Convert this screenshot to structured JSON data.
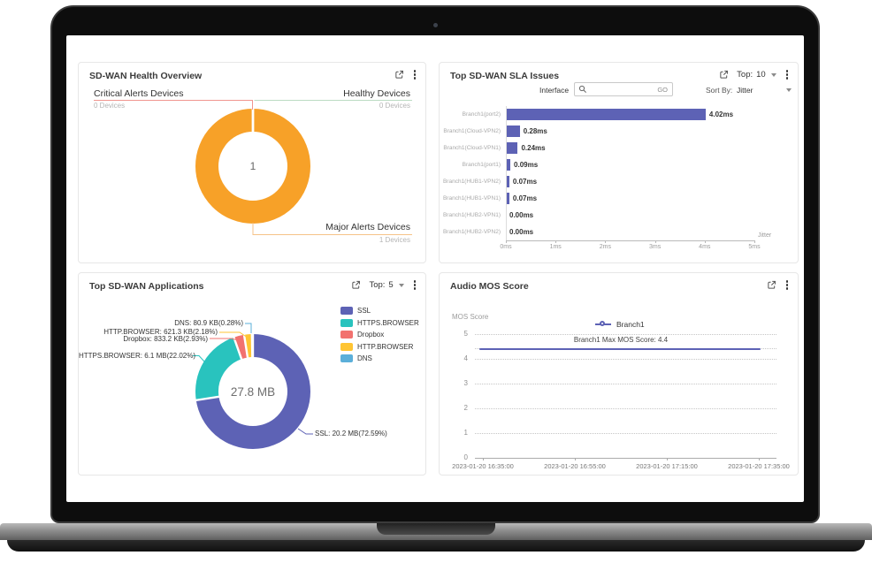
{
  "panels": {
    "health": {
      "title": "SD-WAN Health Overview",
      "chart_data": {
        "type": "pie",
        "style": "donut",
        "center_label": "1",
        "slices": [
          {
            "label": "Critical Alerts Devices",
            "sublabel": "0 Devices",
            "value": 0,
            "color": "#F2726F",
            "line_color": "#F0958F"
          },
          {
            "label": "Healthy Devices",
            "sublabel": "0 Devices",
            "value": 0,
            "color": "#7BC67E",
            "line_color": "#BCDCC3"
          },
          {
            "label": "Major Alerts Devices",
            "sublabel": "1 Devices",
            "value": 1,
            "color": "#F7A128",
            "line_color": "#F6C388"
          }
        ]
      }
    },
    "sla": {
      "title": "Top SD-WAN SLA Issues",
      "top_control": {
        "label": "Top:",
        "value": "10"
      },
      "filter": {
        "interface_label": "Interface",
        "search_value": "",
        "go_label": "GO",
        "sort_by_label": "Sort By:",
        "sort_by_value": "Jitter"
      },
      "chart_data": {
        "type": "bar",
        "orientation": "horizontal",
        "categories": [
          "Branch1(port2)",
          "Branch1(Cloud-VPN2)",
          "Branch1(Cloud-VPN1)",
          "Branch1(port1)",
          "Branch1(HUB1-VPN2)",
          "Branch1(HUB1-VPN1)",
          "Branch1(HUB2-VPN1)",
          "Branch1(HUB2-VPN2)"
        ],
        "values": [
          4.02,
          0.28,
          0.24,
          0.09,
          0.07,
          0.07,
          0.0,
          0.0
        ],
        "value_labels": [
          "4.02ms",
          "0.28ms",
          "0.24ms",
          "0.09ms",
          "0.07ms",
          "0.07ms",
          "0.00ms",
          "0.00ms"
        ],
        "x_ticks": [
          "0ms",
          "1ms",
          "2ms",
          "3ms",
          "4ms",
          "5ms"
        ],
        "xlim": [
          0,
          5
        ],
        "xlabel": "Jitter",
        "bar_color": "#5D62B5",
        "grid": "off"
      }
    },
    "applications": {
      "title": "Top SD-WAN Applications",
      "top_control": {
        "label": "Top:",
        "value": "5"
      },
      "chart_data": {
        "type": "pie",
        "style": "donut",
        "center_label": "27.8 MB",
        "legend_position": "right",
        "slices": [
          {
            "name": "SSL",
            "callout": "SSL: 20.2 MB(72.59%)",
            "value": 72.59,
            "color": "#5D62B5"
          },
          {
            "name": "HTTPS.BROWSER",
            "callout": "HTTPS.BROWSER: 6.1 MB(22.02%)",
            "value": 22.02,
            "color": "#29C3BE"
          },
          {
            "name": "Dropbox",
            "callout": "Dropbox: 833.2 KB(2.93%)",
            "value": 2.93,
            "color": "#F2726F"
          },
          {
            "name": "HTTP.BROWSER",
            "callout": "HTTP.BROWSER: 621.3 KB(2.18%)",
            "value": 2.18,
            "color": "#FFC533"
          },
          {
            "name": "DNS",
            "callout": "DNS: 80.9 KB(0.28%)",
            "value": 0.28,
            "color": "#5BAFD9"
          }
        ]
      }
    },
    "mos": {
      "title": "Audio MOS Score",
      "chart_data": {
        "type": "line",
        "ylabel": "MOS Score",
        "ylim": [
          0,
          5
        ],
        "y_ticks": [
          5,
          4,
          3,
          2,
          1,
          0
        ],
        "x_ticks": [
          "2023-01-20 16:35:00",
          "2023-01-20 16:55:00",
          "2023-01-20 17:15:00",
          "2023-01-20 17:35:00"
        ],
        "series": [
          {
            "name": "Branch1",
            "color": "#5D62B5",
            "constant_value": 4.4
          }
        ],
        "annotation": "Branch1 Max MOS Score: 4.4",
        "grid": "dotted",
        "legend_position": "top"
      }
    }
  }
}
